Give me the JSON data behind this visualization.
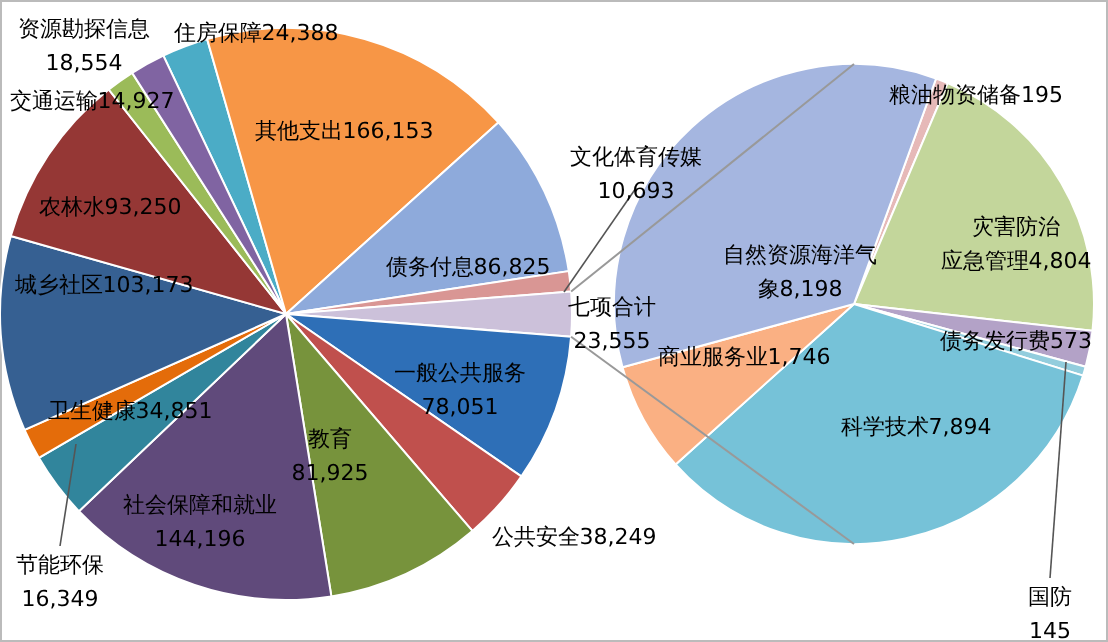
{
  "chart_data": [
    {
      "type": "pie",
      "categories": [
        "住房保障",
        "其他支出",
        "债务付息",
        "文化体育传媒",
        "七项合计",
        "一般公共服务",
        "公共安全",
        "教育",
        "社会保障和就业",
        "卫生健康",
        "节能环保",
        "城乡社区",
        "农林水",
        "交通运输",
        "资源勘探信息"
      ],
      "values": [
        24388,
        166153,
        86825,
        10693,
        23555,
        78051,
        38249,
        81925,
        144196,
        34851,
        16349,
        103173,
        93250,
        14927,
        18554
      ],
      "value_labels": [
        "24,388",
        "166,153",
        "86,825",
        "10,693",
        "23,555",
        "78,051",
        "38,249",
        "81,925",
        "144,196",
        "34,851",
        "16,349",
        "103,173",
        "93,250",
        "14,927",
        "18,554"
      ],
      "colors": [
        "#4bacc6",
        "#f79646",
        "#8eaadb",
        "#d99694",
        "#ccc1da",
        "#2e6fb7",
        "#c0504d",
        "#77933c",
        "#604a7b",
        "#31859c",
        "#e46c0a",
        "#366092",
        "#953735",
        "#9bbb59",
        "#8064a2"
      ]
    },
    {
      "type": "pie",
      "categories": [
        "粮油物资储备",
        "灾害防治应急管理",
        "债务发行费",
        "国防",
        "科学技术",
        "商业服务业",
        "自然资源海洋气象"
      ],
      "values": [
        195,
        4804,
        573,
        145,
        7894,
        1746,
        8198
      ],
      "value_labels": [
        "195",
        "4,804",
        "573",
        "145",
        "7,894",
        "1,746",
        "8,198"
      ],
      "colors": [
        "#e6b9b8",
        "#c3d69b",
        "#b3a2c7",
        "#93cddd",
        "#76c2d8",
        "#fab083",
        "#a5b6e0"
      ]
    }
  ]
}
